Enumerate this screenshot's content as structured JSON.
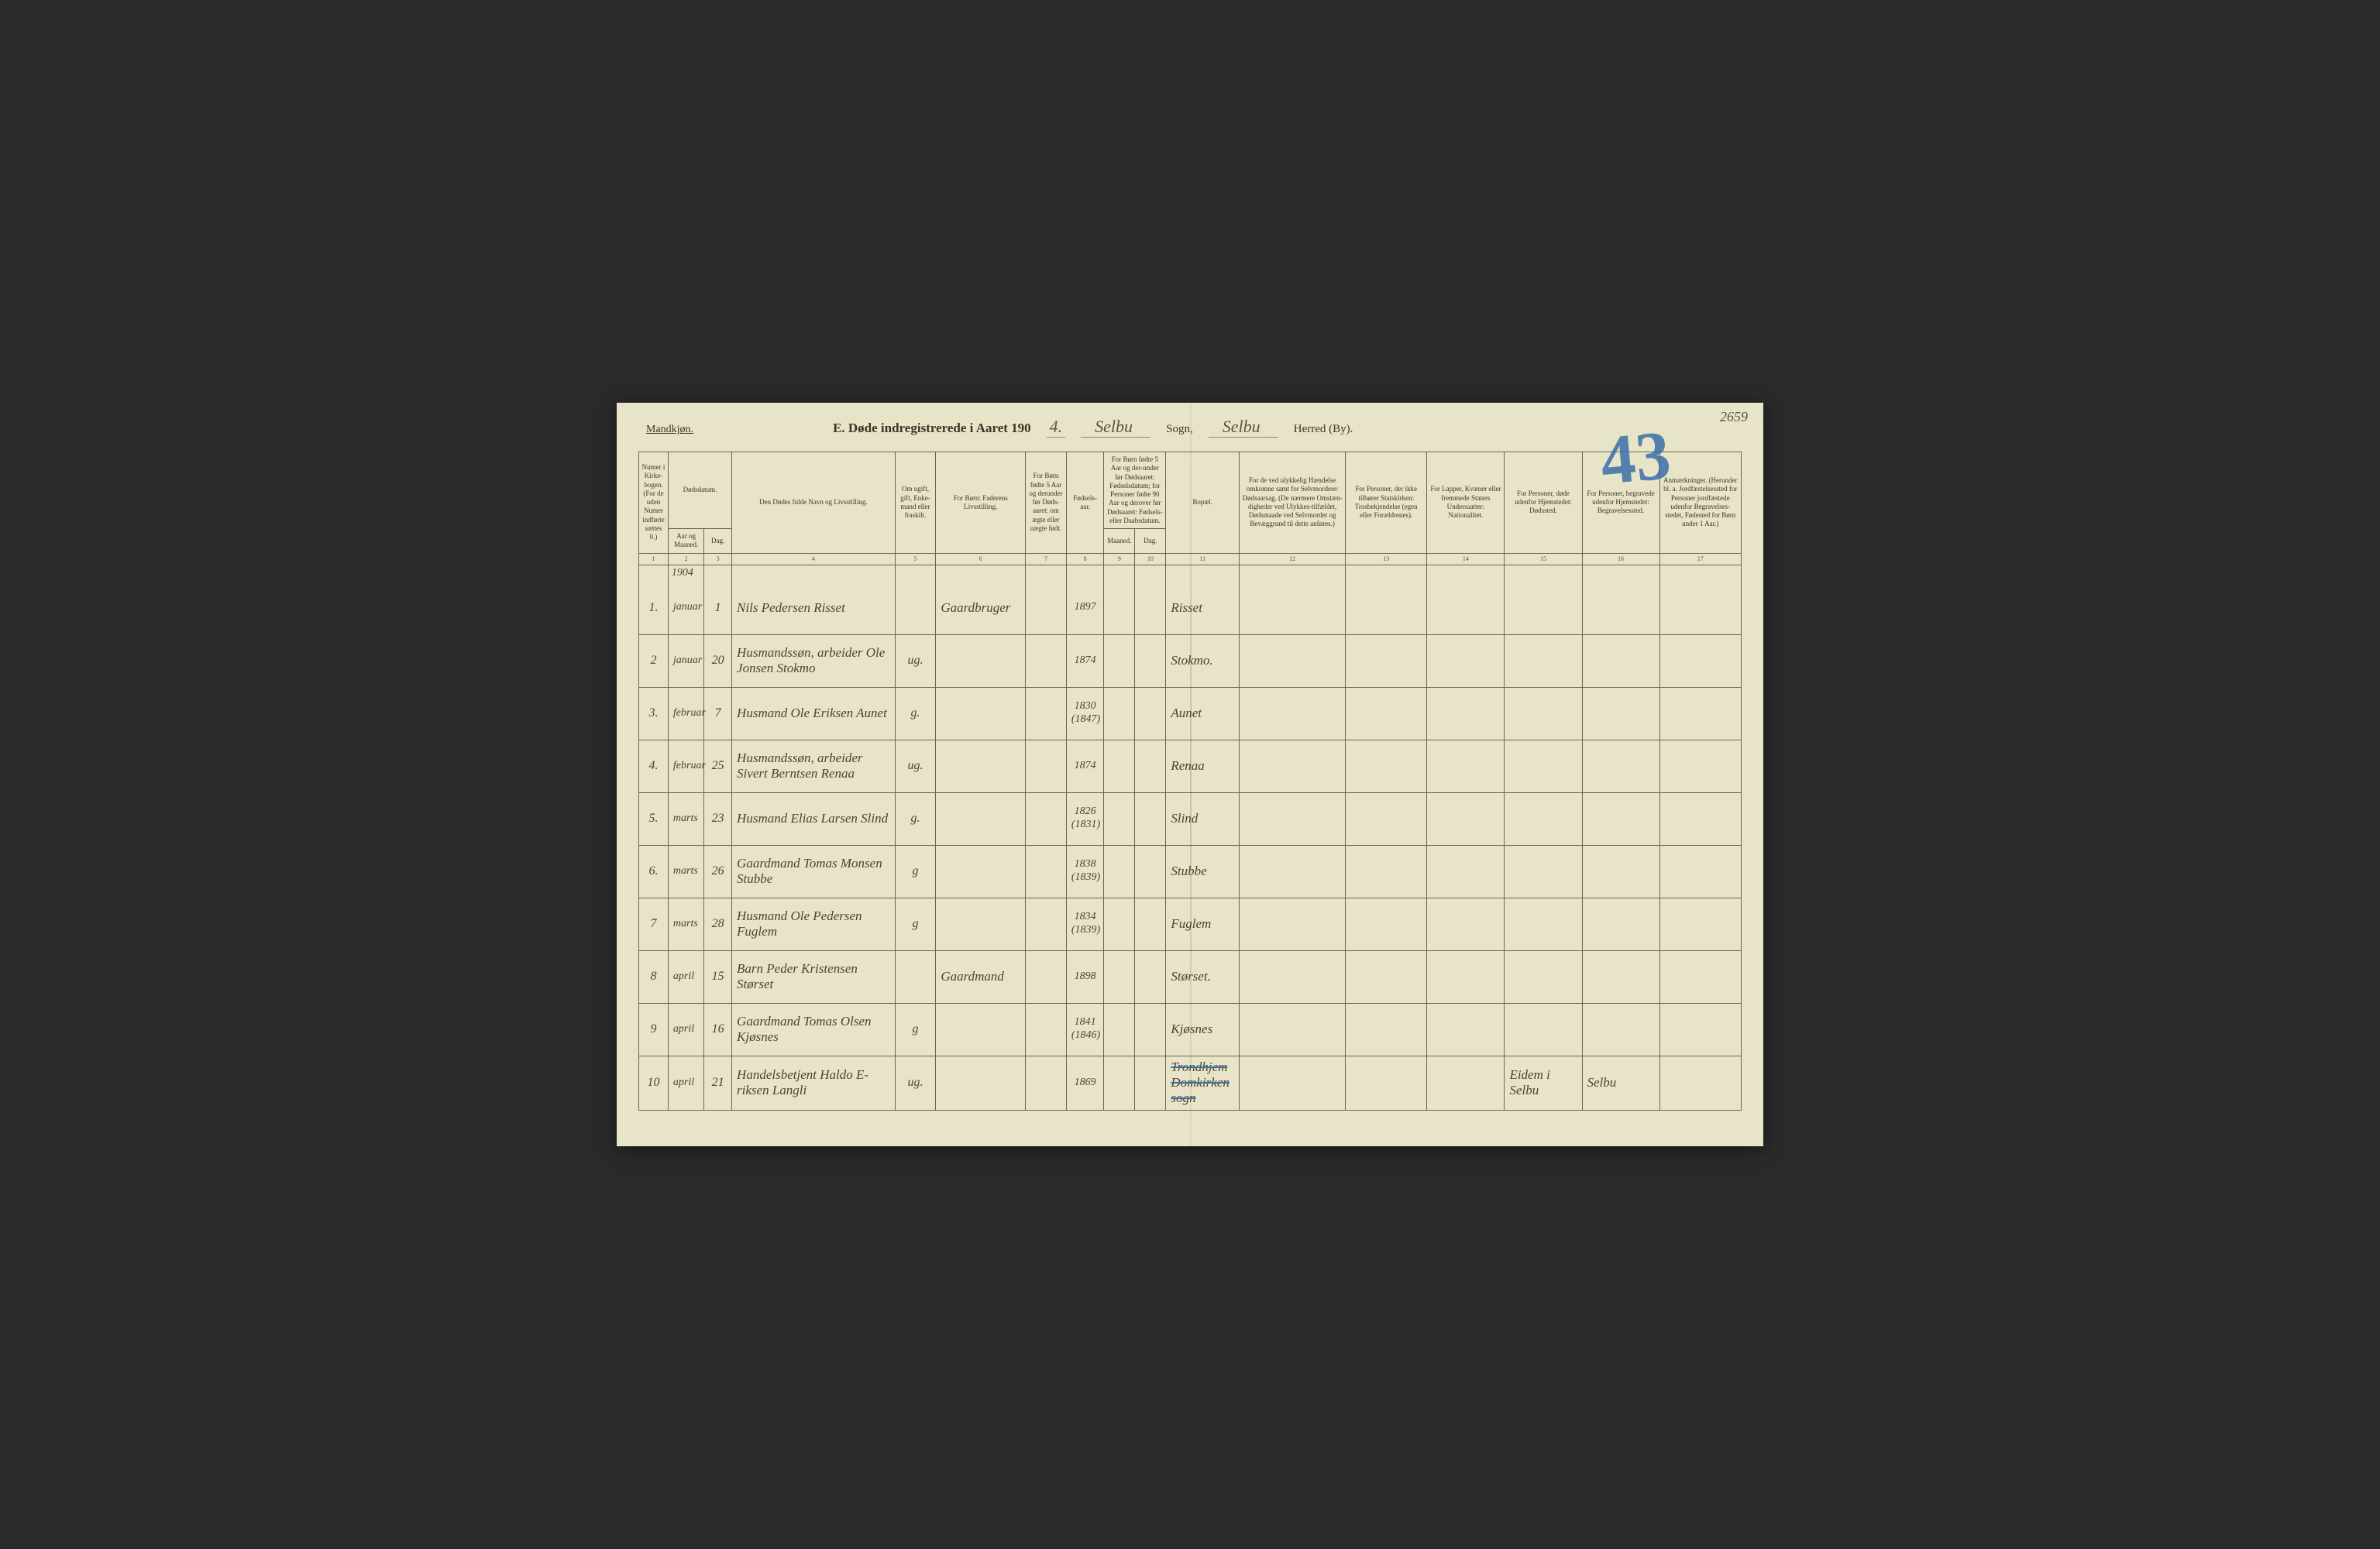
{
  "corner_note": "2659",
  "big_number": "43",
  "header": {
    "gender": "Mandkjøn.",
    "title_prefix": "E.  Døde indregistrerede i Aaret 190",
    "year_suffix": "4.",
    "sogn_value": "Selbu",
    "sogn_label": "Sogn,",
    "herred_value": "Selbu",
    "herred_label": "Herred (By)."
  },
  "columns": {
    "c1": "Numer i Kirke-bogen. (For de uden Numer indførte sættes 0.)",
    "c2a": "Dødsdatum.",
    "c2b": "Aar og Maaned.",
    "c3": "Dag.",
    "c4": "Den Dødes fulde Navn og Livsstilling.",
    "c5": "Om ugift, gift, Enke-mand eller fraskilt.",
    "c6": "For Børn: Faderens Livsstilling.",
    "c7": "For Børn fødte 5 Aar og derunder før Døds-aaret: om ægte eller uægte født.",
    "c8": "Fødsels-aar.",
    "c9_10a": "For Børn fødte 5 Aar og der-under før Dødsaaret: Fødselsdatum; for Personer fødte 90 Aar og derover før Dødsaaret: Fødsels- eller Daabsdatum.",
    "c9": "Maaned.",
    "c10": "Dag.",
    "c11": "Bopæl.",
    "c12": "For de ved ulykkelig Hændelse omkomne samt for Selvmordere: Dødsaarsag. (De nærmere Omstæn-digheder ved Ulykkes-tilfældet, Dødsmaade ved Selvmordet og Bevæggrund til dette anføres.)",
    "c13": "For Personer, der ikke tilhører Statskirken: Trosbekjendelse (egen eller Forældrenes).",
    "c14": "For Lapper, Kvæner eller fremmede Staters Undersaatter: Nationalitet.",
    "c15": "For Personer, døde udenfor Hjemstedet: Dødssted.",
    "c16": "For Personer, begravede udenfor Hjemstedet: Begravelsessted.",
    "c17": "Anmærkninger. (Herunder bl. a. Jordfæstelsessted for Personer jordfæstede udenfor Begravelses-stedet, Fødested for Børn under 1 Aar.)"
  },
  "colnums": [
    "1",
    "2",
    "3",
    "4",
    "5",
    "6",
    "7",
    "8",
    "9",
    "10",
    "11",
    "12",
    "13",
    "14",
    "15",
    "16",
    "17"
  ],
  "year_row": "1904",
  "rows": [
    {
      "n": "1.",
      "m": "januar",
      "d": "1",
      "name": "Nils Pedersen Risset",
      "status": "",
      "father": "Gaardbruger",
      "c7": "",
      "year": "1897",
      "c9": "",
      "c10": "",
      "place": "Risset",
      "c12": "",
      "c13": "",
      "c14": "",
      "c15": "",
      "c16": "",
      "c17": ""
    },
    {
      "n": "2",
      "m": "januar",
      "d": "20",
      "name": "Husmandssøn, arbeider Ole Jonsen Stokmo",
      "status": "ug.",
      "father": "",
      "c7": "",
      "year": "1874",
      "c9": "",
      "c10": "",
      "place": "Stokmo.",
      "c12": "",
      "c13": "",
      "c14": "",
      "c15": "",
      "c16": "",
      "c17": ""
    },
    {
      "n": "3.",
      "m": "februar",
      "d": "7",
      "name": "Husmand Ole Eriksen Aunet",
      "status": "g.",
      "father": "",
      "c7": "",
      "year": "1830 (1847)",
      "c9": "",
      "c10": "",
      "place": "Aunet",
      "c12": "",
      "c13": "",
      "c14": "",
      "c15": "",
      "c16": "",
      "c17": ""
    },
    {
      "n": "4.",
      "m": "februar",
      "d": "25",
      "name": "Husmandssøn, arbeider Sivert Berntsen Renaa",
      "status": "ug.",
      "father": "",
      "c7": "",
      "year": "1874",
      "c9": "",
      "c10": "",
      "place": "Renaa",
      "c12": "",
      "c13": "",
      "c14": "",
      "c15": "",
      "c16": "",
      "c17": ""
    },
    {
      "n": "5.",
      "m": "marts",
      "d": "23",
      "name": "Husmand Elias Larsen Slind",
      "status": "g.",
      "father": "",
      "c7": "",
      "year": "1826 (1831)",
      "c9": "",
      "c10": "",
      "place": "Slind",
      "c12": "",
      "c13": "",
      "c14": "",
      "c15": "",
      "c16": "",
      "c17": ""
    },
    {
      "n": "6.",
      "m": "marts",
      "d": "26",
      "name": "Gaardmand Tomas Monsen Stubbe",
      "status": "g",
      "father": "",
      "c7": "",
      "year": "1838 (1839)",
      "c9": "",
      "c10": "",
      "place": "Stubbe",
      "c12": "",
      "c13": "",
      "c14": "",
      "c15": "",
      "c16": "",
      "c17": ""
    },
    {
      "n": "7",
      "m": "marts",
      "d": "28",
      "name": "Husmand Ole Pedersen Fuglem",
      "status": "g",
      "father": "",
      "c7": "",
      "year": "1834 (1839)",
      "c9": "",
      "c10": "",
      "place": "Fuglem",
      "c12": "",
      "c13": "",
      "c14": "",
      "c15": "",
      "c16": "",
      "c17": ""
    },
    {
      "n": "8",
      "m": "april",
      "d": "15",
      "name": "Barn Peder Kristensen Størset",
      "status": "",
      "father": "Gaardmand",
      "c7": "",
      "year": "1898",
      "c9": "",
      "c10": "",
      "place": "Størset.",
      "c12": "",
      "c13": "",
      "c14": "",
      "c15": "",
      "c16": "",
      "c17": ""
    },
    {
      "n": "9",
      "m": "april",
      "d": "16",
      "name": "Gaardmand Tomas Olsen Kjøsnes",
      "status": "g",
      "father": "",
      "c7": "",
      "year": "1841 (1846)",
      "c9": "",
      "c10": "",
      "place": "Kjøsnes",
      "c12": "",
      "c13": "",
      "c14": "",
      "c15": "",
      "c16": "",
      "c17": ""
    },
    {
      "n": "10",
      "m": "april",
      "d": "21",
      "name": "Handelsbetjent Haldo E-riksen Langli",
      "status": "ug.",
      "father": "",
      "c7": "",
      "year": "1869",
      "c9": "",
      "c10": "",
      "place": "Trondhjem Domkirken sogn",
      "place_struck": true,
      "c12": "",
      "c13": "",
      "c14": "",
      "c15": "Eidem i Selbu",
      "c16": "Selbu",
      "c17": ""
    }
  ]
}
